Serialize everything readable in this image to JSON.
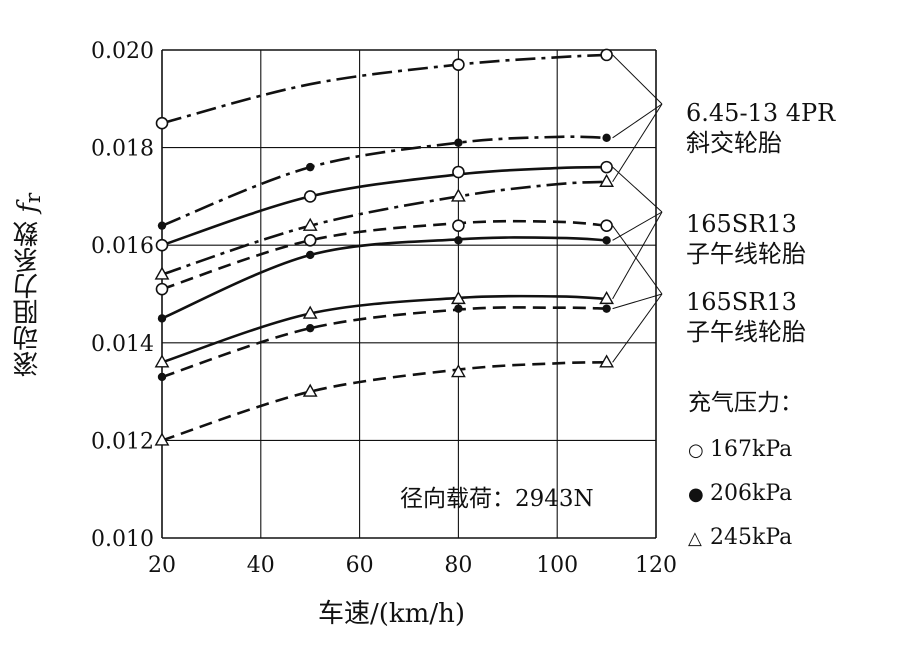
{
  "chart_data": {
    "type": "line",
    "xlabel": "车速/(km/h)",
    "ylabel": "滚动阻力系数 ",
    "ylabel_symbol": "f",
    "ylabel_subscript": "r",
    "xlim": [
      20,
      120
    ],
    "ylim": [
      0.01,
      0.02
    ],
    "x_ticks": [
      "20",
      "40",
      "60",
      "80",
      "100",
      "120"
    ],
    "y_ticks": [
      "0.010",
      "0.012",
      "0.014",
      "0.016",
      "0.018",
      "0.020"
    ],
    "grid": true,
    "annotation": "径向载荷：2943N",
    "tire_labels": [
      {
        "line1": "6.45-13  4PR",
        "line2": "斜交轮胎"
      },
      {
        "line1": "165SR13",
        "line2": "子午线轮胎"
      },
      {
        "line1": "165SR13",
        "line2": "子午线轮胎"
      }
    ],
    "legend": {
      "title": "充气压力：",
      "entries": [
        {
          "symbol": "○",
          "label": "167kPa"
        },
        {
          "symbol": "●",
          "label": "206kPa"
        },
        {
          "symbol": "△",
          "label": "245kPa"
        }
      ]
    },
    "series": [
      {
        "tire": 0,
        "marker": "circle-open",
        "dash": "dashdot",
        "x": [
          20,
          80,
          110
        ],
        "y": [
          0.0185,
          0.0197,
          0.0199
        ],
        "curve_x": [
          20,
          50,
          80,
          100,
          110
        ],
        "curve_y": [
          0.0185,
          0.0193,
          0.0197,
          0.01985,
          0.0199
        ]
      },
      {
        "tire": 0,
        "marker": "circle-filled",
        "dash": "dashdot",
        "x": [
          20,
          50,
          80,
          110
        ],
        "y": [
          0.0164,
          0.0176,
          0.0181,
          0.0182
        ],
        "curve_x": [
          20,
          50,
          80,
          100,
          110
        ],
        "curve_y": [
          0.0164,
          0.0176,
          0.0181,
          0.01822,
          0.0182
        ]
      },
      {
        "tire": 0,
        "marker": "triangle-open",
        "dash": "dashdot",
        "x": [
          20,
          50,
          80,
          110
        ],
        "y": [
          0.0154,
          0.0164,
          0.017,
          0.0173
        ],
        "curve_x": [
          20,
          50,
          80,
          100,
          110
        ],
        "curve_y": [
          0.0154,
          0.0164,
          0.017,
          0.01725,
          0.0173
        ]
      },
      {
        "tire": 1,
        "marker": "circle-open",
        "dash": "solid",
        "x": [
          20,
          50,
          80,
          110
        ],
        "y": [
          0.016,
          0.017,
          0.0175,
          0.0176
        ],
        "curve_x": [
          20,
          50,
          80,
          100,
          110
        ],
        "curve_y": [
          0.016,
          0.017,
          0.01745,
          0.01758,
          0.0176
        ]
      },
      {
        "tire": 1,
        "marker": "circle-filled",
        "dash": "solid",
        "x": [
          20,
          50,
          80,
          110
        ],
        "y": [
          0.0145,
          0.0158,
          0.0161,
          0.0161
        ],
        "curve_x": [
          20,
          50,
          80,
          100,
          110
        ],
        "curve_y": [
          0.0145,
          0.0158,
          0.01612,
          0.01615,
          0.0161
        ]
      },
      {
        "tire": 1,
        "marker": "triangle-open",
        "dash": "solid",
        "x": [
          20,
          50,
          80,
          110
        ],
        "y": [
          0.0136,
          0.0146,
          0.0149,
          0.0149
        ],
        "curve_x": [
          20,
          50,
          80,
          100,
          110
        ],
        "curve_y": [
          0.0136,
          0.0146,
          0.01492,
          0.01495,
          0.0149
        ]
      },
      {
        "tire": 2,
        "marker": "circle-open",
        "dash": "dashed",
        "x": [
          20,
          50,
          80,
          110
        ],
        "y": [
          0.0151,
          0.0161,
          0.0164,
          0.0164
        ],
        "curve_x": [
          20,
          50,
          80,
          100,
          110
        ],
        "curve_y": [
          0.0151,
          0.0161,
          0.01645,
          0.01648,
          0.0164
        ]
      },
      {
        "tire": 2,
        "marker": "circle-filled",
        "dash": "dashed",
        "x": [
          20,
          50,
          80,
          110
        ],
        "y": [
          0.0133,
          0.0143,
          0.0147,
          0.0147
        ],
        "curve_x": [
          20,
          50,
          80,
          100,
          110
        ],
        "curve_y": [
          0.0133,
          0.0143,
          0.01468,
          0.01472,
          0.0147
        ]
      },
      {
        "tire": 2,
        "marker": "triangle-open",
        "dash": "dashed",
        "x": [
          20,
          50,
          80,
          110
        ],
        "y": [
          0.012,
          0.013,
          0.0134,
          0.0136
        ],
        "curve_x": [
          20,
          50,
          80,
          100,
          110
        ],
        "curve_y": [
          0.012,
          0.013,
          0.01345,
          0.01358,
          0.0136
        ]
      }
    ]
  }
}
